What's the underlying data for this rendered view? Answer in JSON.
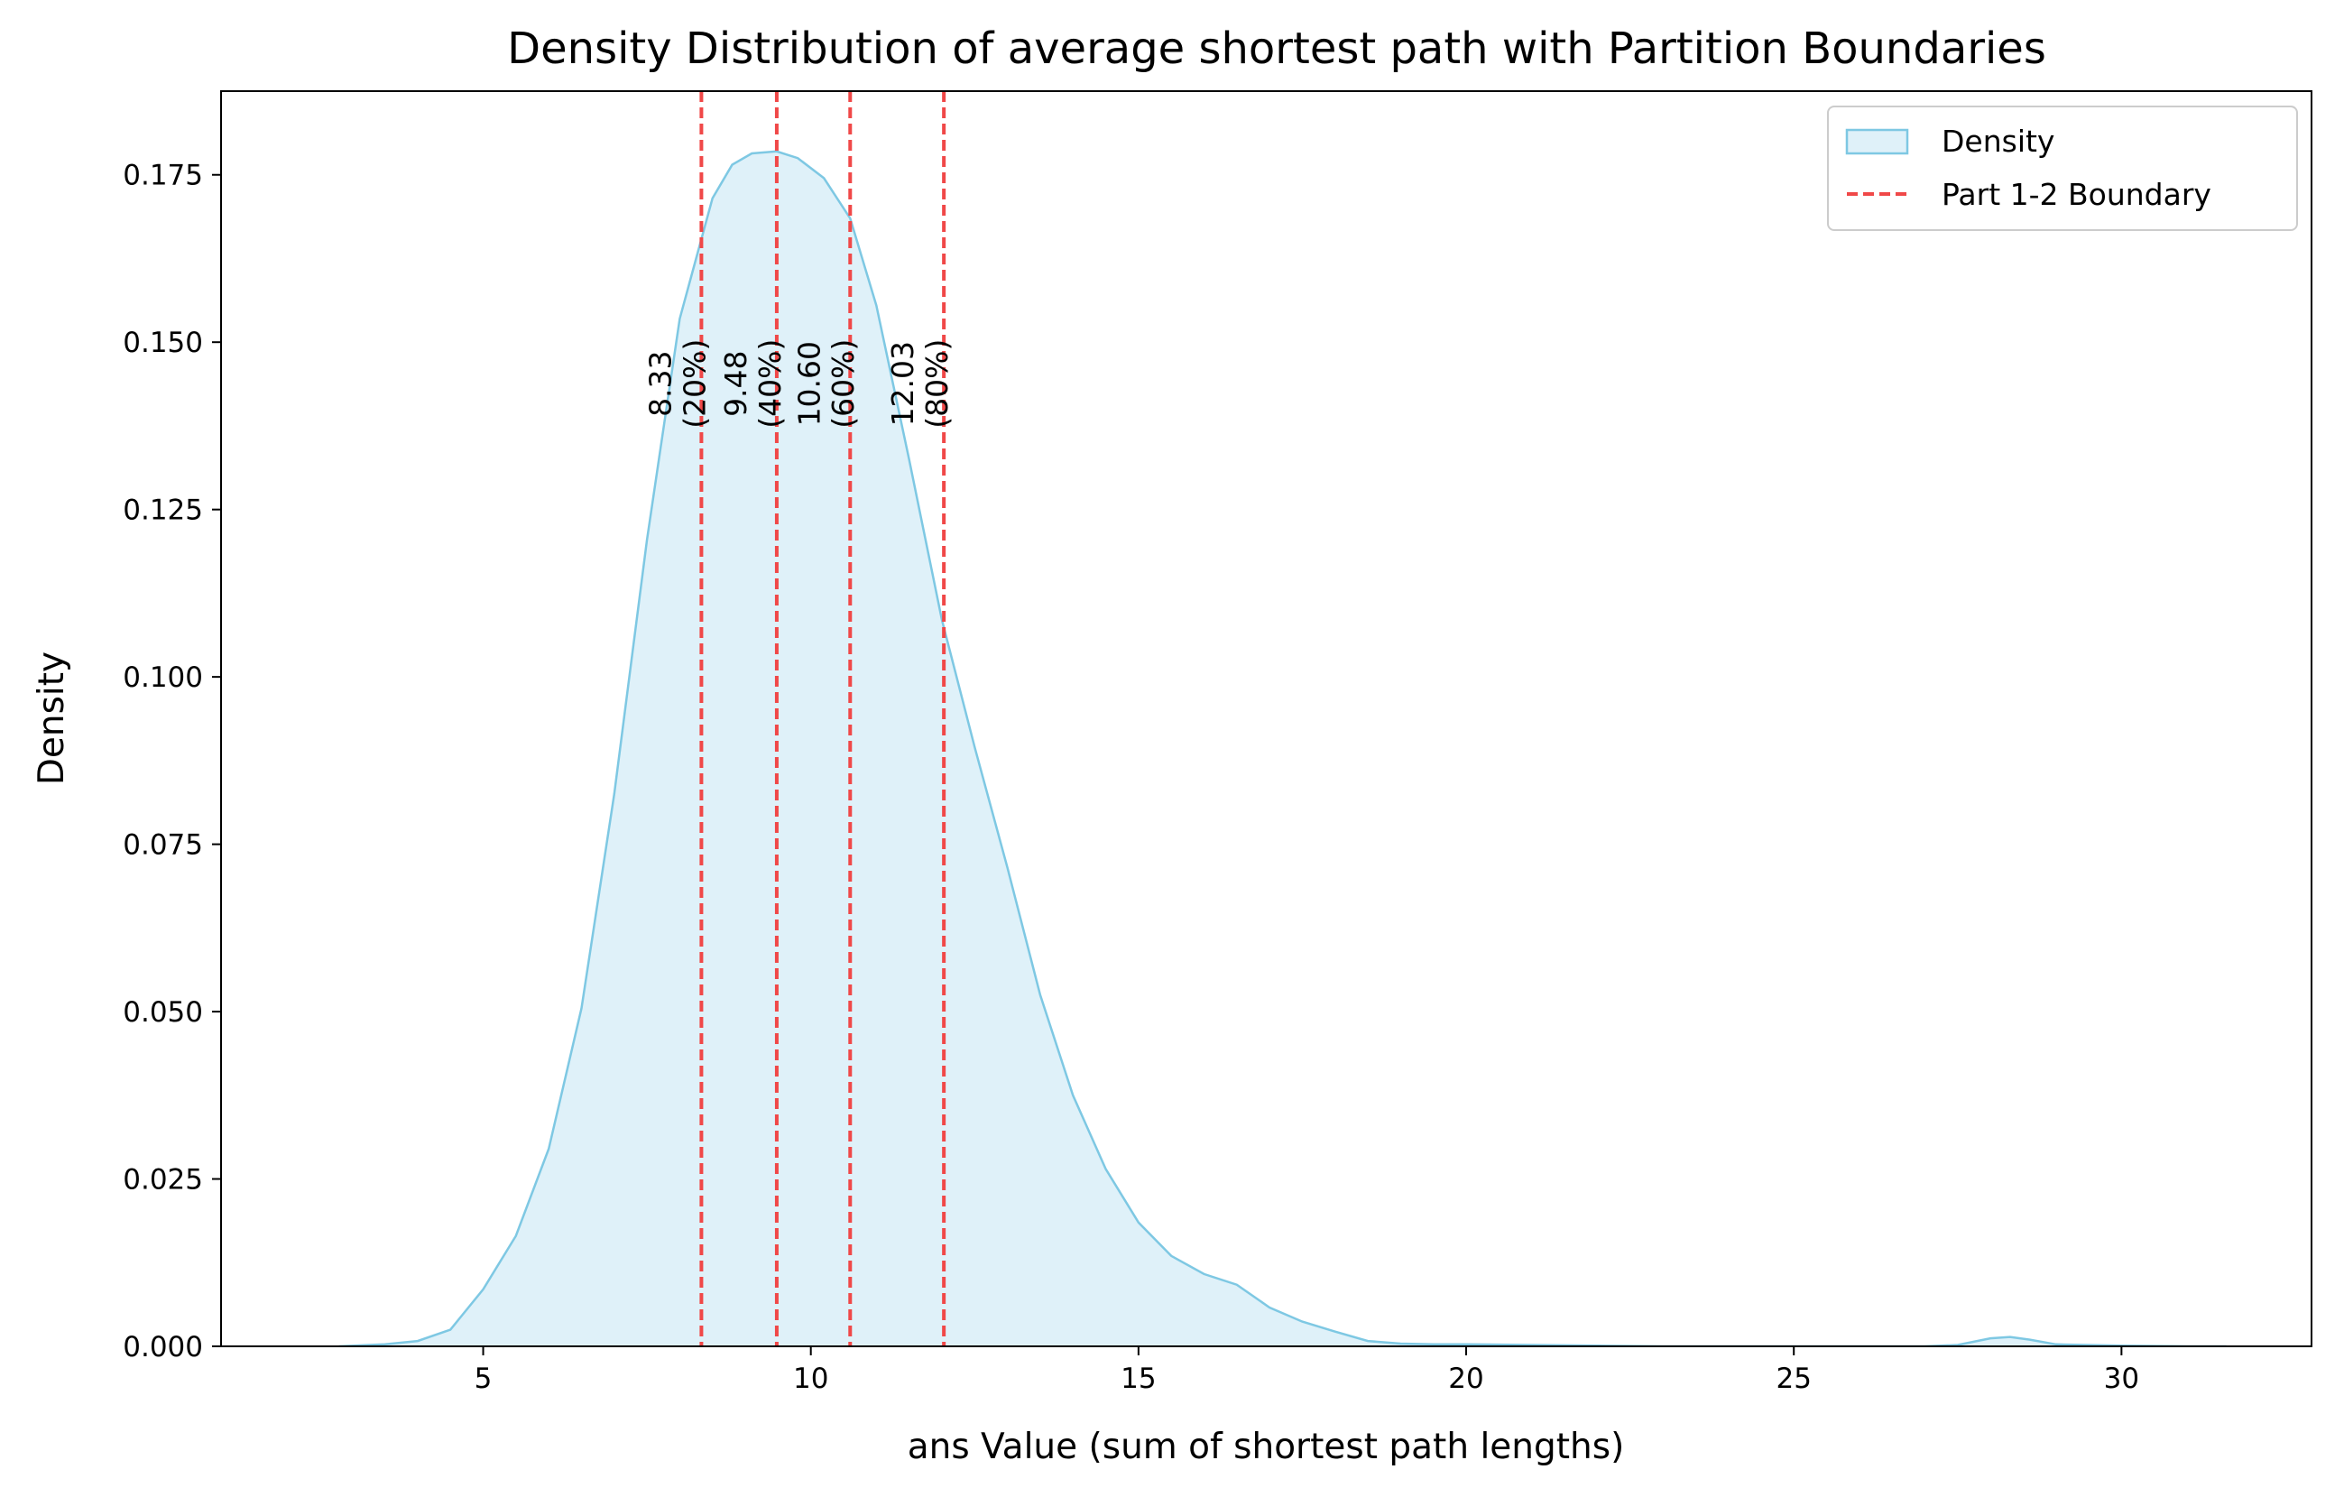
{
  "chart_data": {
    "type": "area",
    "title": "Density Distribution of average shortest path with Partition Boundaries",
    "xlabel": "ans Value (sum of shortest path lengths)",
    "ylabel": "Density",
    "xlim": [
      1.0,
      32.9
    ],
    "ylim": [
      0.0,
      0.1875
    ],
    "x_ticks": [
      5,
      10,
      15,
      20,
      25,
      30
    ],
    "y_ticks": [
      "0.000",
      "0.025",
      "0.050",
      "0.075",
      "0.100",
      "0.125",
      "0.150",
      "0.175"
    ],
    "grid": false,
    "legend_position": "top-right",
    "legend": [
      "Density",
      "Part 1-2 Boundary"
    ],
    "colors": {
      "density_line": "#7ec8e3",
      "density_fill": "#dff1f9",
      "boundary": "#f04848"
    },
    "series": [
      {
        "name": "Density",
        "x": [
          2.8,
          3.5,
          4.0,
          4.5,
          5.0,
          5.5,
          6.0,
          6.5,
          7.0,
          7.5,
          8.0,
          8.5,
          8.8,
          9.1,
          9.48,
          9.8,
          10.2,
          10.6,
          11.0,
          11.5,
          12.0,
          12.5,
          13.0,
          13.5,
          14.0,
          14.5,
          15.0,
          15.5,
          16.0,
          16.5,
          17.0,
          17.5,
          18.0,
          18.5,
          19.0,
          19.5,
          20.0,
          21.0,
          22.0,
          23.0,
          24.0,
          25.0,
          26.0,
          27.0,
          27.5,
          28.0,
          28.3,
          28.6,
          29.0,
          30.0,
          31.0,
          31.6
        ],
        "y": [
          0.0,
          0.0003,
          0.0008,
          0.0025,
          0.0085,
          0.0165,
          0.0295,
          0.0505,
          0.0825,
          0.1205,
          0.1535,
          0.1715,
          0.1765,
          0.1782,
          0.1785,
          0.1775,
          0.1745,
          0.1685,
          0.1555,
          0.1325,
          0.1085,
          0.0895,
          0.0715,
          0.0525,
          0.0375,
          0.0265,
          0.0185,
          0.0135,
          0.0108,
          0.0092,
          0.0058,
          0.0037,
          0.0022,
          0.0008,
          0.0004,
          0.0003,
          0.0003,
          0.0002,
          0.0001,
          0.0,
          0.0,
          0.0,
          0.0,
          0.0,
          0.0002,
          0.0012,
          0.0014,
          0.001,
          0.0003,
          0.0001,
          0.0,
          0.0
        ]
      }
    ],
    "boundaries": [
      {
        "x": 8.33,
        "value_label": "8.33",
        "percent_label": "(20%)"
      },
      {
        "x": 9.48,
        "value_label": "9.48",
        "percent_label": "(40%)"
      },
      {
        "x": 10.6,
        "value_label": "10.60",
        "percent_label": "(60%)"
      },
      {
        "x": 12.03,
        "value_label": "12.03",
        "percent_label": "(80%)"
      }
    ],
    "boundary_label_y": 0.1438
  }
}
